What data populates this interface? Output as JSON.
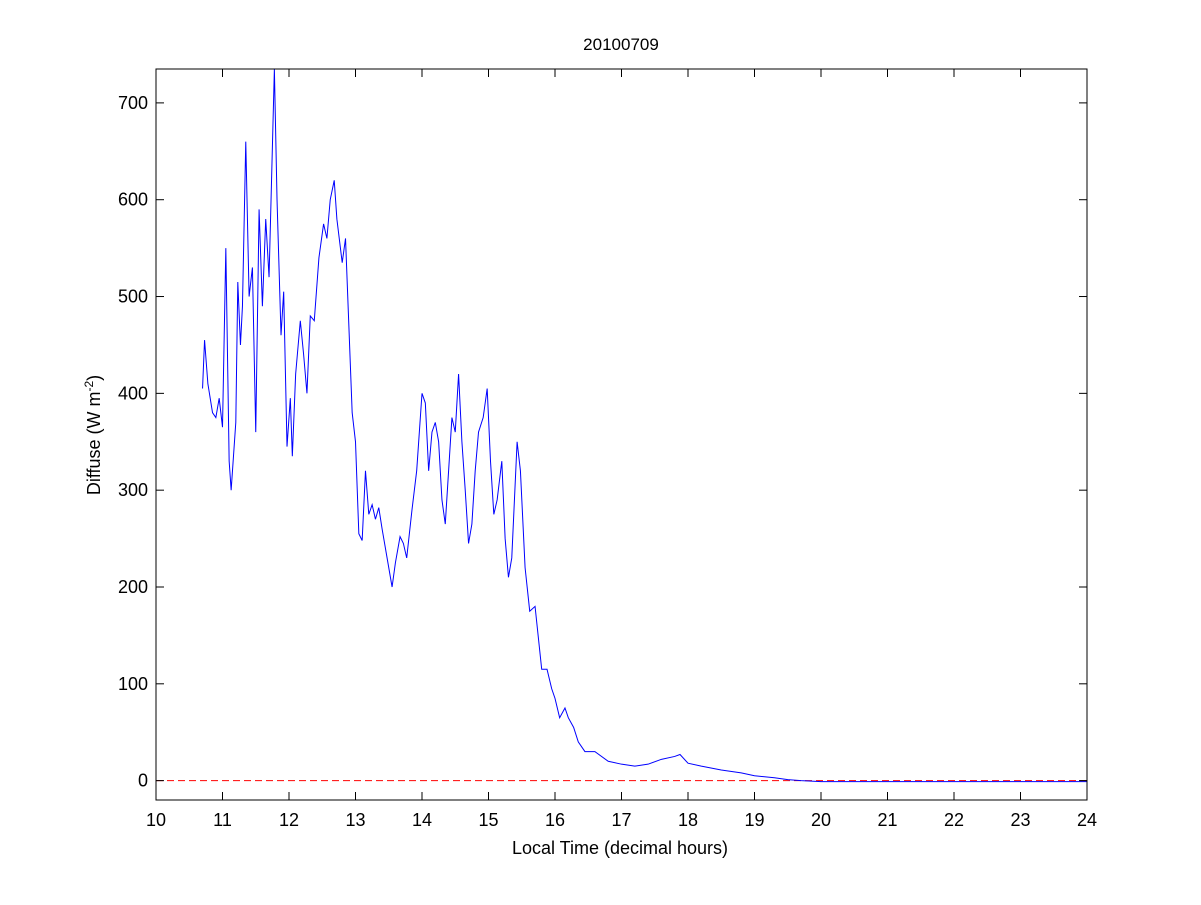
{
  "chart_data": {
    "type": "line",
    "title": "20100709",
    "xlabel": "Local Time (decimal hours)",
    "ylabel": {
      "text": "Diffuse (W m",
      "sup": "-2",
      "end": ")"
    },
    "xlim": [
      10,
      24
    ],
    "xticks": [
      10,
      11,
      12,
      13,
      14,
      15,
      16,
      17,
      18,
      19,
      20,
      21,
      22,
      23,
      24
    ],
    "ylim": [
      -20,
      735
    ],
    "yticks": [
      0,
      100,
      200,
      300,
      400,
      500,
      600,
      700
    ],
    "reference_line": {
      "value": 0,
      "color": "#ff0000"
    },
    "series": [
      {
        "color": "#0000ff",
        "x": [
          10.7,
          10.73,
          10.78,
          10.85,
          10.9,
          10.95,
          11.0,
          11.05,
          11.1,
          11.13,
          11.2,
          11.23,
          11.27,
          11.3,
          11.35,
          11.4,
          11.45,
          11.5,
          11.55,
          11.6,
          11.65,
          11.7,
          11.73,
          11.78,
          11.82,
          11.88,
          11.92,
          11.97,
          12.02,
          12.05,
          12.1,
          12.17,
          12.22,
          12.27,
          12.32,
          12.38,
          12.45,
          12.52,
          12.57,
          12.62,
          12.68,
          12.72,
          12.8,
          12.85,
          12.9,
          12.95,
          13.0,
          13.05,
          13.1,
          13.15,
          13.2,
          13.25,
          13.3,
          13.35,
          13.4,
          13.5,
          13.55,
          13.6,
          13.67,
          13.72,
          13.77,
          13.85,
          13.92,
          14.0,
          14.05,
          14.1,
          14.15,
          14.2,
          14.25,
          14.3,
          14.35,
          14.4,
          14.45,
          14.5,
          14.55,
          14.6,
          14.65,
          14.7,
          14.75,
          14.8,
          14.85,
          14.92,
          14.98,
          15.03,
          15.08,
          15.13,
          15.2,
          15.25,
          15.3,
          15.35,
          15.43,
          15.48,
          15.55,
          15.62,
          15.7,
          15.8,
          15.88,
          15.95,
          16.0,
          16.07,
          16.15,
          16.2,
          16.28,
          16.35,
          16.45,
          16.6,
          16.8,
          17.0,
          17.2,
          17.4,
          17.6,
          17.8,
          17.88,
          18.0,
          18.2,
          18.5,
          18.8,
          19.0,
          19.3,
          19.5,
          19.7,
          20,
          21,
          22,
          23,
          24
        ],
        "values": [
          405,
          455,
          410,
          380,
          375,
          395,
          365,
          550,
          330,
          300,
          370,
          515,
          450,
          490,
          660,
          500,
          530,
          360,
          590,
          490,
          580,
          520,
          600,
          735,
          600,
          460,
          505,
          345,
          395,
          335,
          420,
          475,
          440,
          400,
          480,
          475,
          540,
          575,
          560,
          600,
          620,
          580,
          535,
          560,
          470,
          380,
          350,
          255,
          248,
          320,
          275,
          285,
          270,
          282,
          260,
          220,
          200,
          225,
          252,
          245,
          230,
          280,
          320,
          400,
          390,
          320,
          360,
          370,
          350,
          290,
          265,
          320,
          375,
          360,
          420,
          350,
          300,
          245,
          265,
          320,
          360,
          375,
          405,
          330,
          275,
          290,
          330,
          250,
          210,
          230,
          350,
          320,
          220,
          175,
          180,
          115,
          115,
          95,
          85,
          65,
          75,
          65,
          55,
          40,
          30,
          30,
          20,
          17,
          15,
          17,
          22,
          25,
          27,
          18,
          15,
          11,
          8,
          5,
          3,
          1,
          0,
          -1,
          -1,
          -1,
          -1,
          -1
        ]
      }
    ]
  }
}
